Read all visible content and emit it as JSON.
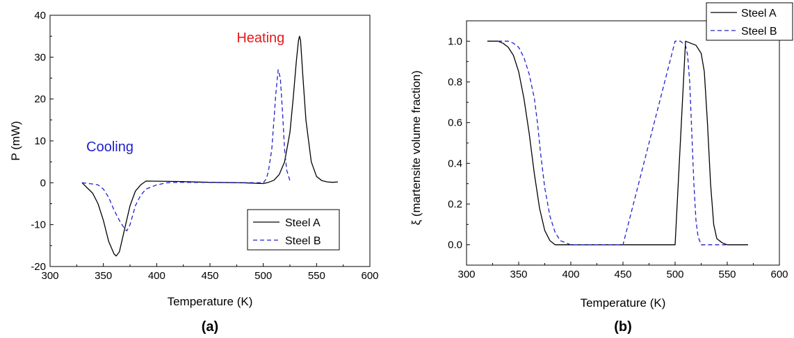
{
  "chart_data": [
    {
      "type": "line",
      "panel_label": "(a)",
      "xlabel": "Temperature (K)",
      "ylabel": "P (mW)",
      "xlim": [
        300,
        600
      ],
      "ylim": [
        -20,
        40
      ],
      "xticks": [
        300,
        350,
        400,
        450,
        500,
        550,
        600
      ],
      "yticks": [
        -20,
        -10,
        0,
        10,
        20,
        30,
        40
      ],
      "legend": {
        "placement": "lower-right",
        "entries": [
          "Steel A",
          "Steel B"
        ]
      },
      "annotations": [
        {
          "text": "Heating",
          "x": 475,
          "y": 33.5,
          "color": "#e41a1c"
        },
        {
          "text": "Cooling",
          "x": 334,
          "y": 7.5,
          "color": "#2020cc"
        }
      ],
      "series": [
        {
          "name": "Steel A",
          "style": "solid",
          "color": "#000000",
          "x": [
            330,
            340,
            345,
            350,
            355,
            360,
            362,
            365,
            370,
            375,
            380,
            385,
            390,
            420,
            450,
            480,
            500,
            505,
            510,
            515,
            520,
            525,
            528,
            531,
            533,
            534,
            535,
            537,
            540,
            545,
            550,
            555,
            560,
            565,
            570
          ],
          "y": [
            0,
            -2.5,
            -5,
            -9,
            -14,
            -17,
            -17.5,
            -16.5,
            -11,
            -5.5,
            -2,
            -0.5,
            0.4,
            0.3,
            0.1,
            0,
            -0.2,
            0.1,
            0.6,
            2,
            5,
            12,
            20,
            29,
            34,
            35,
            34,
            26,
            15,
            5,
            1.5,
            0.5,
            0.2,
            0.1,
            0.2
          ]
        },
        {
          "name": "Steel B",
          "style": "dashed",
          "color": "#2020cc",
          "x": [
            330,
            340,
            345,
            350,
            355,
            360,
            365,
            370,
            372,
            375,
            380,
            385,
            390,
            400,
            410,
            420,
            500,
            503,
            505,
            508,
            510,
            512,
            514,
            516,
            518,
            520,
            522,
            525
          ],
          "y": [
            0,
            -0.3,
            -0.5,
            -1.5,
            -3.5,
            -6.5,
            -9,
            -11,
            -11.5,
            -10,
            -5.5,
            -3,
            -1.5,
            -0.5,
            0,
            0.1,
            0,
            1,
            3,
            8,
            15,
            22,
            27,
            25,
            17,
            8,
            3,
            0.5
          ]
        }
      ]
    },
    {
      "type": "line",
      "panel_label": "(b)",
      "xlabel": "Temperature (K)",
      "ylabel": "ξ (martensite volume fraction)",
      "xlim": [
        300,
        600
      ],
      "ylim": [
        -0.1,
        1.1
      ],
      "xticks": [
        300,
        350,
        400,
        450,
        500,
        550,
        600
      ],
      "yticks": [
        0.0,
        0.2,
        0.4,
        0.6,
        0.8,
        1.0
      ],
      "ytick_labels": [
        "0.0",
        "0.2",
        "0.4",
        "0.6",
        "0.8",
        "1.0"
      ],
      "legend": {
        "placement": "top-right",
        "entries": [
          "Steel A",
          "Steel B"
        ]
      },
      "series": [
        {
          "name": "Steel A",
          "style": "solid",
          "color": "#000000",
          "x": [
            320,
            330,
            335,
            340,
            345,
            350,
            355,
            360,
            365,
            370,
            375,
            380,
            385,
            390,
            450,
            500,
            510,
            515,
            520,
            525,
            528,
            531,
            534,
            537,
            540,
            545,
            550,
            560,
            570
          ],
          "y": [
            1.0,
            1.0,
            0.99,
            0.97,
            0.93,
            0.85,
            0.72,
            0.55,
            0.35,
            0.18,
            0.07,
            0.02,
            0.0,
            0.0,
            0.0,
            0.0,
            1.0,
            0.99,
            0.98,
            0.94,
            0.85,
            0.6,
            0.3,
            0.1,
            0.03,
            0.01,
            0.0,
            0.0,
            0.0
          ]
        },
        {
          "name": "Steel B",
          "style": "dashed",
          "color": "#2020cc",
          "x": [
            330,
            340,
            345,
            350,
            355,
            360,
            365,
            368,
            371,
            375,
            380,
            385,
            390,
            395,
            400,
            405,
            450,
            500,
            505,
            510,
            512,
            514,
            516,
            518,
            520,
            522,
            525,
            550
          ],
          "y": [
            1.0,
            1.0,
            0.99,
            0.97,
            0.92,
            0.84,
            0.72,
            0.6,
            0.45,
            0.28,
            0.14,
            0.06,
            0.02,
            0.01,
            0.0,
            0.0,
            0.0,
            1.0,
            1.0,
            0.98,
            0.93,
            0.8,
            0.55,
            0.3,
            0.12,
            0.04,
            0.0,
            0.0
          ]
        }
      ]
    }
  ]
}
